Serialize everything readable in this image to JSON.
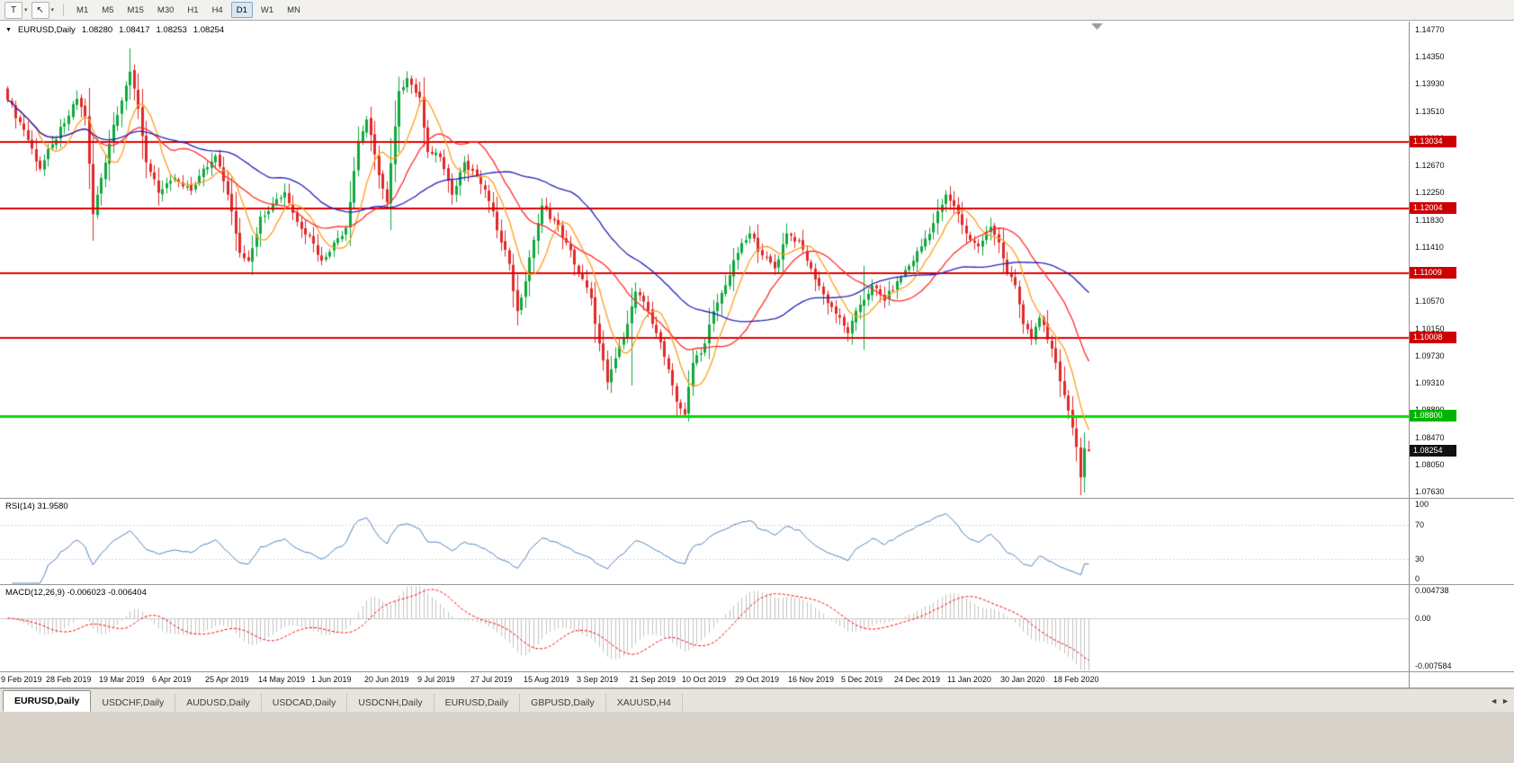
{
  "toolbar": {
    "tool_buttons": [
      {
        "name": "chart-type-tool",
        "glyph": "T"
      },
      {
        "name": "cursor-tool",
        "glyph": "↖"
      }
    ],
    "caret_icon": "▾",
    "timeframes": [
      "M1",
      "M5",
      "M15",
      "M30",
      "H1",
      "H4",
      "D1",
      "W1",
      "MN"
    ],
    "active_timeframe": "D1"
  },
  "chart_data": {
    "type": "candlestick",
    "symbol": "EURUSD",
    "timeframe": "Daily",
    "title": {
      "dropdown_icon": "▼",
      "symbol": "EURUSD,Daily",
      "open": "1.08280",
      "high": "1.08417",
      "low": "1.08253",
      "close": "1.08254"
    },
    "up_color": "#0fa83c",
    "down_color": "#e02828",
    "n_candles": 266,
    "close_anchors": [
      [
        0,
        1.1368
      ],
      [
        4,
        1.1322
      ],
      [
        8,
        1.1262
      ],
      [
        11,
        1.13
      ],
      [
        14,
        1.1332
      ],
      [
        17,
        1.137
      ],
      [
        19,
        1.1342
      ],
      [
        21,
        1.1192
      ],
      [
        23,
        1.1248
      ],
      [
        26,
        1.133
      ],
      [
        30,
        1.1412
      ],
      [
        32,
        1.1355
      ],
      [
        34,
        1.1272
      ],
      [
        37,
        1.1225
      ],
      [
        41,
        1.1248
      ],
      [
        45,
        1.1228
      ],
      [
        48,
        1.1262
      ],
      [
        51,
        1.1282
      ],
      [
        54,
        1.1222
      ],
      [
        57,
        1.1132
      ],
      [
        59,
        1.112
      ],
      [
        62,
        1.1188
      ],
      [
        65,
        1.1208
      ],
      [
        68,
        1.1226
      ],
      [
        71,
        1.118
      ],
      [
        74,
        1.1158
      ],
      [
        77,
        1.112
      ],
      [
        80,
        1.1148
      ],
      [
        83,
        1.117
      ],
      [
        86,
        1.1305
      ],
      [
        88,
        1.1338
      ],
      [
        91,
        1.1252
      ],
      [
        93,
        1.121
      ],
      [
        96,
        1.1382
      ],
      [
        98,
        1.1402
      ],
      [
        101,
        1.1372
      ],
      [
        103,
        1.1288
      ],
      [
        106,
        1.128
      ],
      [
        109,
        1.1222
      ],
      [
        112,
        1.1272
      ],
      [
        115,
        1.1252
      ],
      [
        118,
        1.1212
      ],
      [
        121,
        1.1148
      ],
      [
        123,
        1.1115
      ],
      [
        125,
        1.1042
      ],
      [
        127,
        1.1088
      ],
      [
        129,
        1.1152
      ],
      [
        131,
        1.1205
      ],
      [
        134,
        1.1182
      ],
      [
        137,
        1.1148
      ],
      [
        140,
        1.1102
      ],
      [
        143,
        1.1062
      ],
      [
        145,
        1.0992
      ],
      [
        147,
        1.0932
      ],
      [
        150,
        1.0988
      ],
      [
        152,
        1.1022
      ],
      [
        154,
        1.1072
      ],
      [
        157,
        1.1042
      ],
      [
        159,
        1.1008
      ],
      [
        162,
        1.0952
      ],
      [
        164,
        1.0902
      ],
      [
        166,
        1.0882
      ],
      [
        168,
        1.0962
      ],
      [
        171,
        1.0992
      ],
      [
        173,
        1.1042
      ],
      [
        176,
        1.1082
      ],
      [
        179,
        1.1132
      ],
      [
        182,
        1.1162
      ],
      [
        185,
        1.1128
      ],
      [
        188,
        1.1108
      ],
      [
        191,
        1.1162
      ],
      [
        194,
        1.115
      ],
      [
        197,
        1.1108
      ],
      [
        200,
        1.1068
      ],
      [
        203,
        1.1038
      ],
      [
        206,
        1.1008
      ],
      [
        209,
        1.1052
      ],
      [
        212,
        1.1082
      ],
      [
        215,
        1.1058
      ],
      [
        218,
        1.1088
      ],
      [
        221,
        1.1112
      ],
      [
        224,
        1.1142
      ],
      [
        227,
        1.1178
      ],
      [
        230,
        1.1222
      ],
      [
        233,
        1.1192
      ],
      [
        235,
        1.1162
      ],
      [
        238,
        1.1142
      ],
      [
        241,
        1.1172
      ],
      [
        243,
        1.1148
      ],
      [
        245,
        1.1102
      ],
      [
        247,
        1.1082
      ],
      [
        249,
        1.1022
      ],
      [
        251,
        1.1
      ],
      [
        253,
        1.1032
      ],
      [
        255,
        1.0998
      ],
      [
        257,
        1.0962
      ],
      [
        259,
        1.0912
      ],
      [
        261,
        1.0862
      ],
      [
        262,
        1.0832
      ],
      [
        263,
        1.0785
      ],
      [
        264,
        1.083
      ],
      [
        265,
        1.08254
      ]
    ],
    "wick_overrides": {
      "21": [
        null,
        1.1177
      ],
      "30": [
        1.1448,
        null
      ],
      "98": [
        1.1412,
        null
      ],
      "153": [
        1.1078,
        1.0927
      ],
      "166": [
        null,
        1.0879
      ],
      "210": [
        1.1112,
        1.0982
      ],
      "263": [
        null,
        1.0777
      ],
      "264": [
        null,
        1.0778
      ]
    },
    "force_last_ohlc": [
      1.0828,
      1.08417,
      1.08253,
      1.08254
    ],
    "moving_averages": [
      {
        "name": "fast-ma",
        "period": 8,
        "color": "#ff9d1e"
      },
      {
        "name": "mid-ma",
        "period": 21,
        "color": "#ff2d2d"
      },
      {
        "name": "slow-ma",
        "period": 45,
        "color": "#2323bd"
      }
    ],
    "price_axis": {
      "max": 1.14895,
      "min": 1.07533,
      "ticks": [
        "1.14770",
        "1.14350",
        "1.13930",
        "1.13510",
        "1.13090",
        "1.12670",
        "1.12250",
        "1.11830",
        "1.11410",
        "1.10990",
        "1.10570",
        "1.10150",
        "1.09730",
        "1.09310",
        "1.08890",
        "1.08470",
        "1.08050",
        "1.07630"
      ]
    },
    "horizontal_lines": [
      {
        "price": 1.13034,
        "label": "1.13034",
        "color": "#e00000",
        "badge": "#cc0000",
        "width": 2
      },
      {
        "price": 1.12004,
        "label": "1.12004",
        "color": "#e00000",
        "badge": "#cc0000",
        "width": 2
      },
      {
        "price": 1.11009,
        "label": "1.11009",
        "color": "#e00000",
        "badge": "#cc0000",
        "width": 2
      },
      {
        "price": 1.10008,
        "label": "1.10008",
        "color": "#e00000",
        "badge": "#cc0000",
        "width": 2
      },
      {
        "price": 1.088,
        "label": "1.08800",
        "color": "#00dd00",
        "badge": "#00b400",
        "width": 3
      }
    ],
    "current_price": {
      "value": 1.08254,
      "label": "1.08254",
      "badge": "#111111"
    },
    "date_labels": [
      "9 Feb 2019",
      "28 Feb 2019",
      "19 Mar 2019",
      "6 Apr 2019",
      "25 Apr 2019",
      "14 May 2019",
      "1 Jun 2019",
      "20 Jun 2019",
      "9 Jul 2019",
      "27 Jul 2019",
      "15 Aug 2019",
      "3 Sep 2019",
      "21 Sep 2019",
      "10 Oct 2019",
      "29 Oct 2019",
      "16 Nov 2019",
      "5 Dec 2019",
      "24 Dec 2019",
      "11 Jan 2020",
      "30 Jan 2020",
      "18 Feb 2020"
    ],
    "rsi": {
      "label": "RSI(14) 31.9580",
      "period": 14,
      "last": 31.958,
      "levels": [
        100,
        70,
        30,
        0
      ],
      "color": "#4f81bd"
    },
    "macd": {
      "label": "MACD(12,26,9) -0.006023 -0.006404",
      "fast": 12,
      "slow": 26,
      "signal": 9,
      "main_last": -0.006023,
      "signal_last": -0.006404,
      "scale_max": 0.004738,
      "scale_min": -0.007584,
      "axis_labels": [
        "0.004738",
        "0.00",
        "-0.007584"
      ],
      "hist_color": "#c2c2c2",
      "signal_color": "#ff0000"
    }
  },
  "tabs": {
    "items": [
      "EURUSD,Daily",
      "USDCHF,Daily",
      "AUDUSD,Daily",
      "USDCAD,Daily",
      "USDCNH,Daily",
      "EURUSD,Daily",
      "GBPUSD,Daily",
      "XAUUSD,H4"
    ],
    "active_index": 0,
    "scroll_left_icon": "◄",
    "scroll_right_icon": "►"
  }
}
